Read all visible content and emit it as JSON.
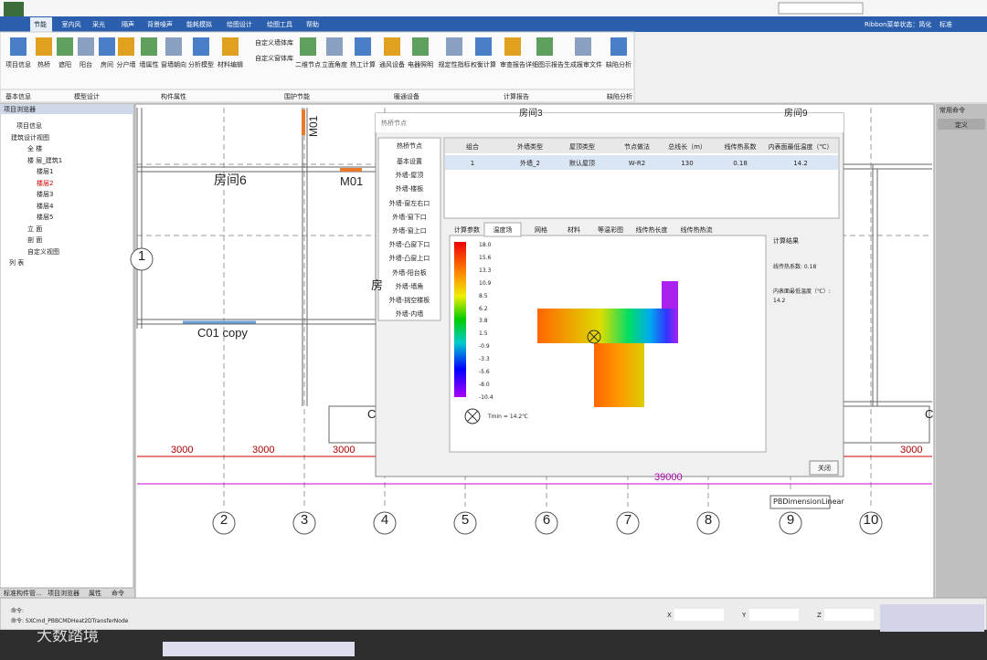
{
  "menu": {
    "tabs": [
      "节能",
      "室内风",
      "采光",
      "隔声",
      "背景噪声",
      "能耗模拟",
      "绘图设计",
      "绘图工具",
      "帮助"
    ],
    "ribbon_status": "Ribbon菜单状态：简化",
    "ribbon_mode": "标准"
  },
  "ribbon": {
    "buttons": [
      "项目信息",
      "热桥",
      "遮阳",
      "阳台",
      "房间",
      "分户墙",
      "墙属性",
      "窗墙朝向",
      "分析模型",
      "材料编辑",
      "二维节点",
      "立面角度",
      "热工计算",
      "通风设备",
      "电器照明",
      "规定性指标",
      "权衡计算",
      "审查报告",
      "详细图示报告",
      "生成报审文件",
      "缺陷分析"
    ],
    "small_buttons": [
      "自定义墙体库",
      "自定义窗体库"
    ],
    "groups": [
      "基本信息",
      "模型设计",
      "构件属性",
      "围护节能",
      "暖通设备",
      "计算报告",
      "缺陷分析"
    ]
  },
  "project_browser": {
    "title": "项目浏览器",
    "tree": [
      "项目信息",
      "建筑设计视图",
      "全 楼",
      "楼 层_建筑1",
      "楼层1",
      "楼层2",
      "楼层3",
      "楼层4",
      "楼层5",
      "立 面",
      "剖 面",
      "自定义视图",
      "列 表"
    ],
    "tabs": [
      "标准构件管...",
      "项目浏览器",
      "属性",
      "命令"
    ]
  },
  "right_panel": {
    "title": "常用命令",
    "button": "定义"
  },
  "drawing": {
    "labels": [
      "房间6",
      "M01",
      "M01",
      "C01 copy",
      "房",
      "C",
      "C",
      "房间3",
      "房间9"
    ],
    "dimensions": [
      "3000",
      "3000",
      "3000",
      "3000"
    ],
    "total_dimension": "39000",
    "axes": [
      "1",
      "2",
      "3",
      "4",
      "5",
      "6",
      "7",
      "8",
      "9",
      "10"
    ],
    "tooltip": "PBDimensionLinear"
  },
  "dialog": {
    "title": "热桥节点",
    "list_header": "热桥节点",
    "list": [
      "基本设置",
      "外墙-屋顶",
      "外墙-楼板",
      "外墙-窗左右口",
      "外墙-窗下口",
      "外墙-窗上口",
      "外墙-凸窗下口",
      "外墙-凸窗上口",
      "外墙-阳台板",
      "外墙-墙角",
      "外墙-挑空楼板",
      "外墙-内墙"
    ],
    "table": {
      "headers": [
        "组合",
        "外墙类型",
        "屋顶类型",
        "节点做法",
        "总线长（m）",
        "线传热系数",
        "内表面最低温度（℃）"
      ],
      "rows": [
        [
          "1",
          "外墙_2",
          "默认屋顶",
          "W-R2",
          "130",
          "0.18",
          "14.2"
        ]
      ]
    },
    "tabs": [
      "计算参数",
      "温度场",
      "网格",
      "材料",
      "等温彩图",
      "线传热长度",
      "线传热热流"
    ],
    "legend": [
      "18.0",
      "15.6",
      "13.3",
      "10.9",
      "8.5",
      "6.2",
      "3.8",
      "1.5",
      "-0.9",
      "-3.3",
      "-5.6",
      "-8.0",
      "-10.4"
    ],
    "tmin": "Tmin = 14.2℃",
    "result_title": "计算结果",
    "result_psi": "线传热系数: 0.18",
    "result_temp": "内表面最低温度（℃）: 14.2",
    "close": "关闭"
  },
  "command": {
    "lines": [
      "命令:",
      "命令: SXCmd_PBBCMDHeat2DTransferNode"
    ],
    "coords": [
      "X",
      "Y",
      "Z"
    ]
  },
  "watermark": "大数踏境"
}
